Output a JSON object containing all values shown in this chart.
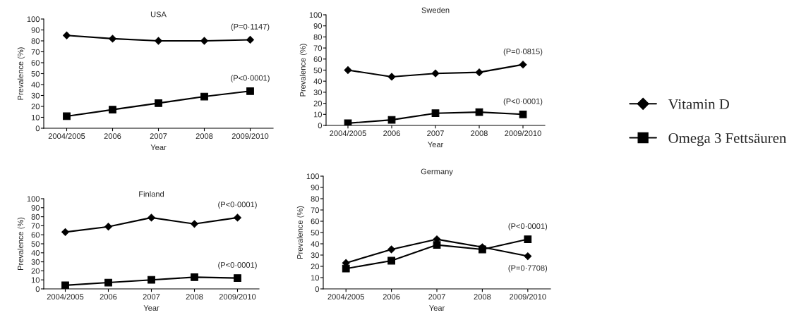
{
  "chart_data": [
    {
      "type": "line",
      "title": "USA",
      "xlabel": "Year",
      "ylabel": "Prevalence (%)",
      "categories": [
        "2004/2005",
        "2006",
        "2007",
        "2008",
        "2009/2010"
      ],
      "ylim": [
        0,
        100
      ],
      "yticks": [
        0,
        10,
        20,
        30,
        40,
        50,
        60,
        70,
        80,
        90,
        100
      ],
      "grid": false,
      "legend": "right",
      "series": [
        {
          "name": "Vitamin D",
          "color": "#000000",
          "marker": "diamond",
          "values": [
            85,
            82,
            80,
            80,
            81
          ]
        },
        {
          "name": "Omega 3 Fettsäuren",
          "color": "#000000",
          "marker": "square",
          "values": [
            11,
            17,
            23,
            29,
            34
          ]
        }
      ],
      "annotations": [
        {
          "text": "(P=0·1147)",
          "x": "2009/2010",
          "y": 81
        },
        {
          "text": "(P<0·0001)",
          "x": "2009/2010",
          "y": 34
        }
      ]
    },
    {
      "type": "line",
      "title": "Sweden",
      "xlabel": "Year",
      "ylabel": "Prevalence (%)",
      "categories": [
        "2004/2005",
        "2006",
        "2007",
        "2008",
        "2009/2010"
      ],
      "ylim": [
        0,
        100
      ],
      "yticks": [
        0,
        10,
        20,
        30,
        40,
        50,
        60,
        70,
        80,
        90,
        100
      ],
      "grid": false,
      "series": [
        {
          "color": "#000000",
          "marker": "diamond",
          "values": [
            50,
            44,
            47,
            48,
            55
          ]
        },
        {
          "color": "#000000",
          "marker": "square",
          "values": [
            2,
            5,
            11,
            12,
            10
          ]
        }
      ],
      "annotations": [
        {
          "text": "(P=0·0815)",
          "x": "2009/2010",
          "y": 55
        },
        {
          "text": "(P<0·0001)",
          "x": "2009/2010",
          "y": 10
        }
      ]
    },
    {
      "type": "line",
      "title": "Finland",
      "xlabel": "Year",
      "ylabel": "Prevalence (%)",
      "categories": [
        "2004/2005",
        "2006",
        "2007",
        "2008",
        "2009/2010"
      ],
      "ylim": [
        0,
        100
      ],
      "yticks": [
        0,
        10,
        20,
        30,
        40,
        50,
        60,
        70,
        80,
        90,
        100
      ],
      "grid": false,
      "series": [
        {
          "color": "#000000",
          "marker": "diamond",
          "values": [
            63,
            69,
            79,
            72,
            79
          ]
        },
        {
          "color": "#000000",
          "marker": "square",
          "values": [
            4,
            7,
            10,
            13,
            12
          ]
        }
      ],
      "annotations": [
        {
          "text": "(P<0·0001)",
          "x": "2009/2010",
          "y": 79
        },
        {
          "text": "(P<0·0001)",
          "x": "2009/2010",
          "y": 12
        }
      ]
    },
    {
      "type": "line",
      "title": "Germany",
      "xlabel": "Year",
      "ylabel": "Prevalence (%)",
      "categories": [
        "2004/2005",
        "2006",
        "2007",
        "2008",
        "2009/2010"
      ],
      "ylim": [
        0,
        100
      ],
      "yticks": [
        0,
        10,
        20,
        30,
        40,
        50,
        60,
        70,
        80,
        90,
        100
      ],
      "grid": false,
      "series": [
        {
          "color": "#000000",
          "marker": "diamond",
          "values": [
            23,
            35,
            44,
            37,
            29
          ]
        },
        {
          "color": "#000000",
          "marker": "square",
          "values": [
            18,
            25,
            39,
            35,
            44
          ]
        }
      ],
      "annotations": [
        {
          "text": "(P<0·0001)",
          "x": "2009/2010",
          "y": 44
        },
        {
          "text": "(P=0·7708)",
          "x": "2009/2010",
          "y": 29
        }
      ]
    }
  ]
}
